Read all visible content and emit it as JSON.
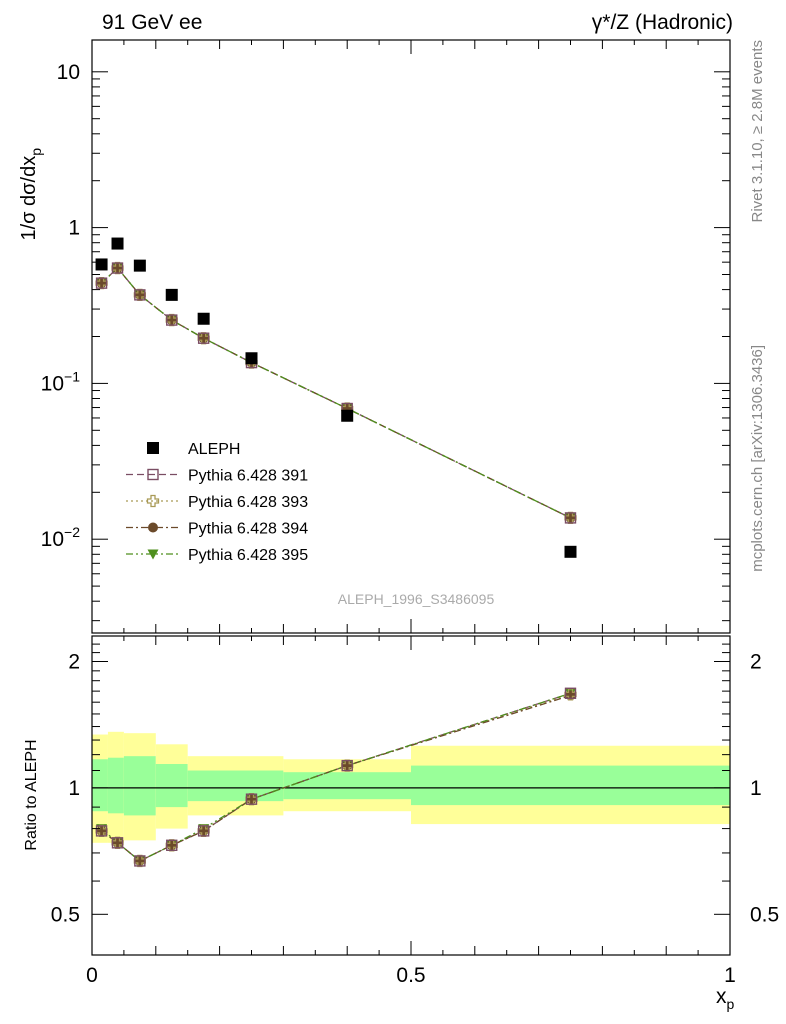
{
  "header": {
    "left_label": "91 GeV ee",
    "right_label": "γ*/Z (Hadronic)"
  },
  "side_labels": {
    "rivet": "Rivet 3.1.10, ≥ 2.8M events",
    "mcplots": "mcplots.cern.ch [arXiv:1306.3436]"
  },
  "watermark": "ALEPH_1996_S3486095",
  "colors": {
    "data": "#000000",
    "s391": "#7a4d63",
    "s393": "#a99a56",
    "s394": "#6b4a2a",
    "s395": "#4f8f1e",
    "band_outer": "#ffff99",
    "band_inner": "#99ff99"
  },
  "chart_data": [
    {
      "type": "scatter",
      "panel": "main",
      "ylabel": "1/σ dσ/dx",
      "ylabel_sub": "p",
      "yscale": "log",
      "xlim": [
        0,
        1
      ],
      "ylim": [
        0.0025,
        16
      ],
      "y_ticks": [
        {
          "value": 0.01,
          "base": "10",
          "exp": "−2"
        },
        {
          "value": 0.1,
          "base": "10",
          "exp": "−1"
        },
        {
          "value": 1,
          "base": "1",
          "exp": ""
        },
        {
          "value": 10,
          "base": "10",
          "exp": ""
        }
      ],
      "legend_position": "lower-left",
      "x": [
        0.015,
        0.04,
        0.075,
        0.125,
        0.175,
        0.25,
        0.4,
        0.75
      ],
      "series": [
        {
          "name": "ALEPH",
          "key": "data",
          "marker": "square-filled",
          "line": "none",
          "values": [
            0.58,
            0.79,
            0.57,
            0.37,
            0.26,
            0.145,
            0.062,
            0.0083
          ]
        },
        {
          "name": "Pythia 6.428 391",
          "key": "s391",
          "marker": "square-open",
          "line": "dash",
          "values": [
            0.44,
            0.55,
            0.37,
            0.255,
            0.195,
            0.136,
            0.069,
            0.0137
          ]
        },
        {
          "name": "Pythia 6.428 393",
          "key": "s393",
          "marker": "cross-open",
          "line": "dot",
          "values": [
            0.44,
            0.55,
            0.37,
            0.255,
            0.195,
            0.136,
            0.069,
            0.0137
          ]
        },
        {
          "name": "Pythia 6.428 394",
          "key": "s394",
          "marker": "circle-filled",
          "line": "dash-dot",
          "values": [
            0.44,
            0.55,
            0.37,
            0.255,
            0.195,
            0.136,
            0.069,
            0.0137
          ]
        },
        {
          "name": "Pythia 6.428 395",
          "key": "s395",
          "marker": "triangle-down-filled",
          "line": "dash-dot-dot",
          "values": [
            0.44,
            0.55,
            0.37,
            0.255,
            0.195,
            0.136,
            0.069,
            0.0137
          ]
        }
      ]
    },
    {
      "type": "line",
      "panel": "ratio",
      "ylabel": "Ratio to ALEPH",
      "xlabel": "x",
      "xlabel_sub": "p",
      "ylim": [
        0.4,
        2.3
      ],
      "y_ticks": [
        0.5,
        1,
        2
      ],
      "x_ticks": [
        {
          "value": 0,
          "label": "0"
        },
        {
          "value": 0.5,
          "label": "0.5"
        },
        {
          "value": 1,
          "label": "1"
        }
      ],
      "x": [
        0.015,
        0.04,
        0.075,
        0.125,
        0.175,
        0.25,
        0.4,
        0.75
      ],
      "bands": [
        {
          "x0": 0.0,
          "x1": 0.025,
          "inner": [
            0.88,
            1.17
          ],
          "outer": [
            0.74,
            1.34
          ]
        },
        {
          "x0": 0.025,
          "x1": 0.05,
          "inner": [
            0.87,
            1.18
          ],
          "outer": [
            0.74,
            1.36
          ]
        },
        {
          "x0": 0.05,
          "x1": 0.1,
          "inner": [
            0.86,
            1.19
          ],
          "outer": [
            0.75,
            1.35
          ]
        },
        {
          "x0": 0.1,
          "x1": 0.15,
          "inner": [
            0.9,
            1.14
          ],
          "outer": [
            0.8,
            1.27
          ]
        },
        {
          "x0": 0.15,
          "x1": 0.3,
          "inner": [
            0.93,
            1.1
          ],
          "outer": [
            0.86,
            1.19
          ]
        },
        {
          "x0": 0.3,
          "x1": 0.5,
          "inner": [
            0.94,
            1.09
          ],
          "outer": [
            0.88,
            1.17
          ]
        },
        {
          "x0": 0.5,
          "x1": 1.0,
          "inner": [
            0.91,
            1.13
          ],
          "outer": [
            0.82,
            1.26
          ]
        }
      ],
      "series": [
        {
          "name": "Pythia 6.428 391",
          "key": "s391",
          "values": [
            0.79,
            0.74,
            0.67,
            0.73,
            0.79,
            0.94,
            1.13,
            1.68
          ]
        },
        {
          "name": "Pythia 6.428 393",
          "key": "s393",
          "values": [
            0.79,
            0.74,
            0.67,
            0.73,
            0.79,
            0.94,
            1.13,
            1.67
          ]
        },
        {
          "name": "Pythia 6.428 394",
          "key": "s394",
          "values": [
            0.79,
            0.74,
            0.67,
            0.73,
            0.79,
            0.94,
            1.13,
            1.66
          ]
        },
        {
          "name": "Pythia 6.428 395",
          "key": "s395",
          "values": [
            0.8,
            0.74,
            0.67,
            0.73,
            0.8,
            0.94,
            1.13,
            1.68
          ]
        }
      ]
    }
  ]
}
